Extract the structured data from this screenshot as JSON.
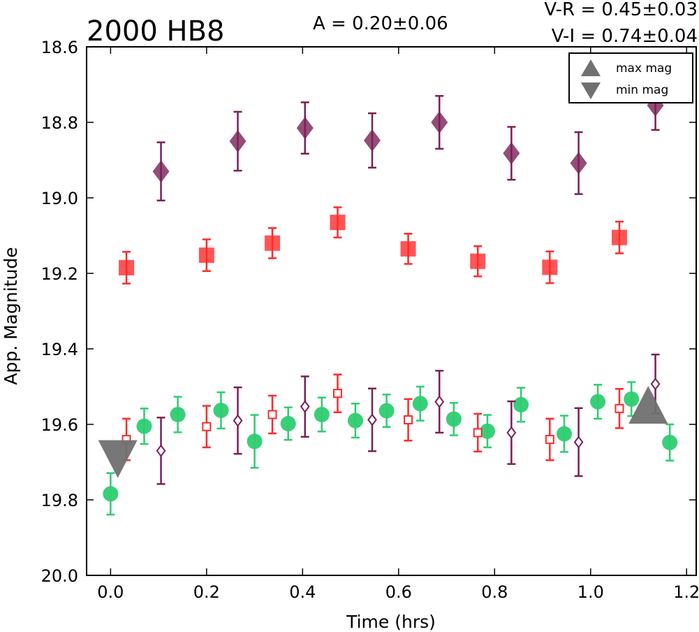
{
  "chart_data": {
    "type": "scatter",
    "title": "2000 HB8",
    "annotations": {
      "amplitude": "A  = 0.20±0.06",
      "v_r": "V-R = 0.45±0.03",
      "v_i": "V-I  = 0.74±0.04"
    },
    "xlabel": "Time (hrs)",
    "ylabel": "App. Magnitude",
    "xlim": [
      -0.05,
      1.22
    ],
    "ylim": [
      20.0,
      18.6
    ],
    "y_inverted": true,
    "xticks": [
      "0.0",
      "0.2",
      "0.4",
      "0.6",
      "0.8",
      "1.0",
      "1.2"
    ],
    "yticks": [
      "18.6",
      "18.8",
      "19.0",
      "19.2",
      "19.4",
      "19.6",
      "19.8",
      "20.0"
    ],
    "legend": {
      "placement": "top-right",
      "entries": [
        "max mag",
        "min mag"
      ]
    },
    "colors": {
      "green": "#2ecc71",
      "red": "#ff2a2a",
      "purple": "#7a1f55",
      "gray": "#707070"
    },
    "series": [
      {
        "marker": "filled-diamond",
        "color": "#7a1f55",
        "x": [
          0.105,
          0.265,
          0.405,
          0.545,
          0.685,
          0.835,
          0.975,
          1.135
        ],
        "y": [
          18.93,
          18.85,
          18.815,
          18.848,
          18.8,
          18.882,
          18.908,
          18.755
        ],
        "err": [
          0.077,
          0.078,
          0.068,
          0.072,
          0.07,
          0.07,
          0.082,
          0.065
        ]
      },
      {
        "marker": "filled-square",
        "color": "#ff2a2a",
        "x": [
          0.033,
          0.2,
          0.337,
          0.473,
          0.62,
          0.765,
          0.915,
          1.06
        ],
        "y": [
          19.185,
          19.152,
          19.12,
          19.065,
          19.135,
          19.168,
          19.184,
          19.105
        ],
        "err": [
          0.042,
          0.042,
          0.04,
          0.04,
          0.04,
          0.04,
          0.042,
          0.042
        ]
      },
      {
        "marker": "filled-circle",
        "color": "#2ecc71",
        "x": [
          0.0,
          0.07,
          0.14,
          0.23,
          0.3,
          0.37,
          0.44,
          0.51,
          0.575,
          0.645,
          0.715,
          0.785,
          0.855,
          0.945,
          1.015,
          1.085,
          1.165
        ],
        "y": [
          19.784,
          19.605,
          19.574,
          19.563,
          19.645,
          19.598,
          19.574,
          19.59,
          19.564,
          19.545,
          19.586,
          19.618,
          19.548,
          19.625,
          19.54,
          19.533,
          19.648
        ],
        "err": [
          0.055,
          0.047,
          0.047,
          0.048,
          0.07,
          0.043,
          0.045,
          0.045,
          0.043,
          0.045,
          0.043,
          0.043,
          0.045,
          0.048,
          0.045,
          0.045,
          0.048
        ]
      },
      {
        "marker": "open-square",
        "color": "#ff2a2a",
        "x": [
          0.033,
          0.2,
          0.337,
          0.473,
          0.62,
          0.765,
          0.915,
          1.06
        ],
        "y": [
          19.64,
          19.606,
          19.574,
          19.518,
          19.588,
          19.622,
          19.64,
          19.558
        ],
        "err": [
          0.055,
          0.055,
          0.05,
          0.05,
          0.055,
          0.05,
          0.055,
          0.052
        ]
      },
      {
        "marker": "open-diamond",
        "color": "#7a1f55",
        "x": [
          0.105,
          0.265,
          0.405,
          0.545,
          0.685,
          0.835,
          0.975,
          1.135
        ],
        "y": [
          19.67,
          19.59,
          19.553,
          19.588,
          19.54,
          19.622,
          19.647,
          19.493
        ],
        "err": [
          0.088,
          0.088,
          0.08,
          0.083,
          0.082,
          0.083,
          0.09,
          0.078
        ]
      }
    ],
    "extrema_markers": [
      {
        "kind": "min",
        "marker": "triangle-down",
        "x": 0.015,
        "y": 19.69
      },
      {
        "kind": "max",
        "marker": "triangle-up",
        "x": 1.12,
        "y": 19.55
      }
    ]
  }
}
